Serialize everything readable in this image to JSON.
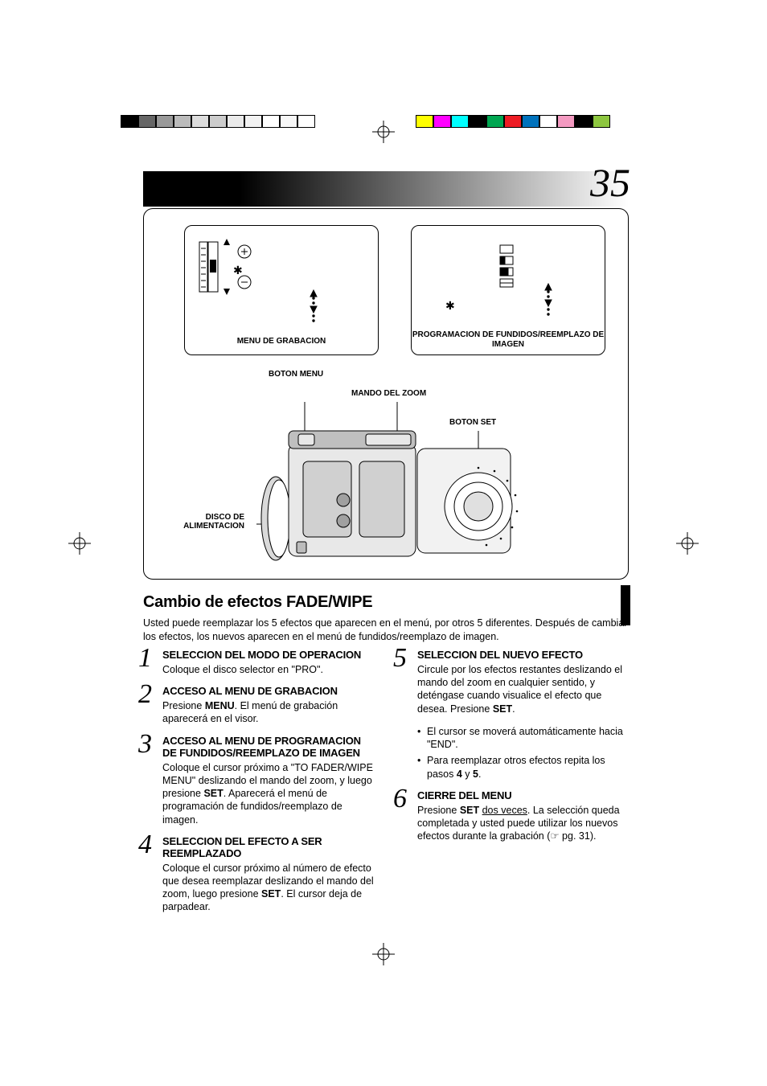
{
  "page_number": "35",
  "color_bar_sets": {
    "left": [
      "#000000",
      "#666666",
      "#999999",
      "#bbbbbb",
      "#dddddd",
      "#cccccc",
      "#eaeaea",
      "#f2f2f2",
      "#ffffff",
      "#f7f7f7",
      "#ffffff"
    ],
    "right": [
      "#ffff00",
      "#ff00ff",
      "#00ffff",
      "#000000",
      "#00a651",
      "#ed1c24",
      "#0072bc",
      "#ffffff",
      "#f49ac1",
      "#000000",
      "#8dc63f"
    ]
  },
  "figure": {
    "screen1_label": "MENU DE GRABACION",
    "screen2_label": "PROGRAMACION DE FUNDIDOS/REEMPLAZO DE IMAGEN",
    "labels": {
      "boton_menu": "BOTON MENU",
      "mando_zoom": "MANDO DEL ZOOM",
      "boton_set": "BOTON SET",
      "disco": "DISCO DE ALIMENTACION"
    }
  },
  "section_title": "Cambio de efectos FADE/WIPE",
  "intro": "Usted puede reemplazar los 5 efectos que aparecen en el menú, por otros 5 diferentes. Después de cambiar los efectos, los nuevos aparecen en el menú de fundidos/reemplazo de imagen.",
  "steps_left": [
    {
      "num": "1",
      "title": "SELECCION DEL MODO DE OPERACION",
      "body_html": "Coloque el disco selector en \"PRO\"."
    },
    {
      "num": "2",
      "title": "ACCESO AL MENU DE GRABACION",
      "body_html": "Presione <strong>MENU</strong>. El menú de grabación aparecerá en el visor."
    },
    {
      "num": "3",
      "title": "ACCESO AL MENU DE PROGRAMACION DE FUNDIDOS/REEMPLAZO DE IMAGEN",
      "body_html": "Coloque el cursor próximo a \"TO FADER/WIPE MENU\" deslizando el mando del zoom, y luego presione <strong>SET</strong>. Aparecerá el menú de programación de fundidos/reemplazo de imagen."
    },
    {
      "num": "4",
      "title": "SELECCION DEL EFECTO A SER REEMPLAZADO",
      "body_html": "Coloque el cursor próximo al número de efecto que desea reemplazar deslizando el mando del zoom, luego presione <strong>SET</strong>. El cursor deja de parpadear."
    }
  ],
  "steps_right": [
    {
      "num": "5",
      "title": "SELECCION DEL NUEVO EFECTO",
      "body_html": "Circule por los efectos restantes deslizando el mando del zoom en cualquier sentido, y deténgase cuando visualice el efecto que desea. Presione <strong>SET</strong>.",
      "bullets": [
        "El cursor se moverá automáticamente hacia \"END\".",
        "Para reemplazar otros efectos repita los pasos <strong>4</strong> y <strong>5</strong>."
      ]
    },
    {
      "num": "6",
      "title": "CIERRE DEL MENU",
      "body_html": "Presione <strong>SET</strong> <span class=\"u\">dos veces</span>. La selección queda completada y usted puede utilizar los nuevos efectos durante la grabación (☞ pg. 31)."
    }
  ]
}
